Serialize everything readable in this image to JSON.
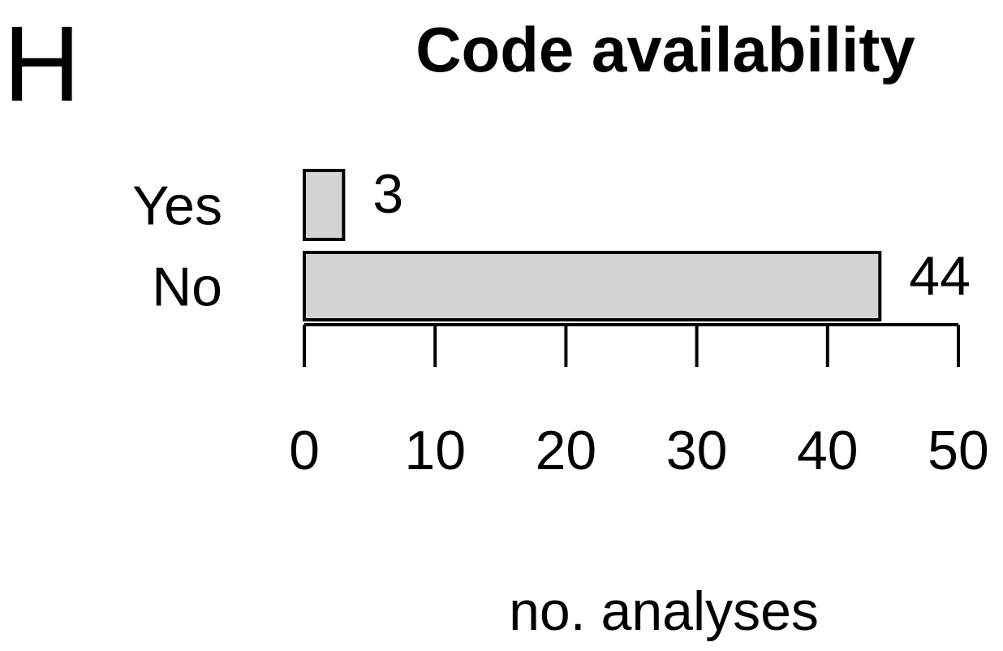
{
  "panel_label": "H",
  "chart_data": {
    "type": "bar",
    "orientation": "horizontal",
    "title": "Code availability",
    "xlabel": "no. analyses",
    "ylabel": "",
    "categories": [
      "Yes",
      "No"
    ],
    "values": [
      3,
      44
    ],
    "data_labels": [
      "3",
      "44"
    ],
    "xlim": [
      0,
      50
    ],
    "x_ticks": [
      0,
      10,
      20,
      30,
      40,
      50
    ],
    "bar_color": "#d3d3d3",
    "grid": false,
    "legend": "none"
  }
}
